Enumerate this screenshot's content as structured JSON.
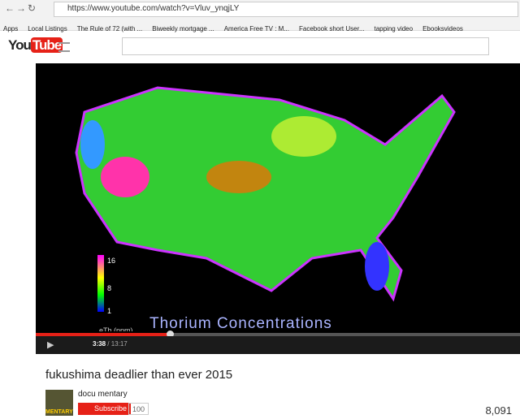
{
  "browser": {
    "url": "https://www.youtube.com/watch?v=Vluv_ynqjLY",
    "bookmarks": [
      "Apps",
      "Local Listings",
      "The Rule of 72 (with ...",
      "Biweekly mortgage ...",
      "America Free TV : M...",
      "Facebook short User...",
      "tapping video",
      "Ebooksvideos"
    ]
  },
  "header": {
    "logo_you": "You",
    "logo_tube": "Tube"
  },
  "video": {
    "overlay_title": "Thorium Concentrations",
    "legend_ticks": [
      "16",
      "8",
      "1"
    ],
    "legend_label": "eTh (ppm)",
    "current_time": "3:38",
    "time_separator": "/",
    "duration": "13:17"
  },
  "watch": {
    "title": "fukushima deadlier than ever 2015",
    "channel": "docu mentary",
    "thumbnail_text": "MENTARY",
    "subscribe": "Subscribe",
    "subscriber_count": "100",
    "views": "8,091"
  }
}
